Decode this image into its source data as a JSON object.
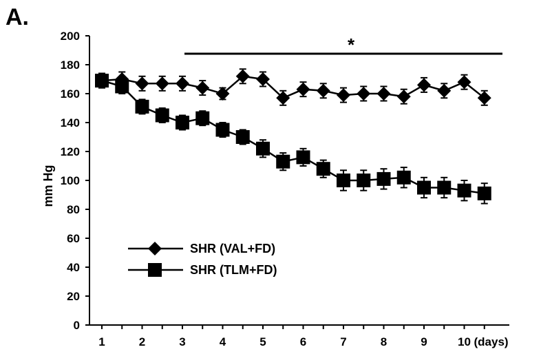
{
  "panel_label": "A.",
  "chart_data": {
    "type": "line",
    "title": "",
    "xlabel": "",
    "ylabel": "mm Hg",
    "x_unit_label": "(days)",
    "ylim": [
      0,
      200
    ],
    "xlim": [
      1,
      11
    ],
    "y_ticks": [
      0,
      20,
      40,
      60,
      80,
      100,
      120,
      140,
      160,
      180,
      200
    ],
    "x_ticks": [
      1,
      2,
      3,
      4,
      5,
      6,
      7,
      8,
      9,
      10
    ],
    "grid": false,
    "legend_position": "lower-left",
    "significance": {
      "label": "*",
      "x_start": 3,
      "x_end": 11
    },
    "series": [
      {
        "name": "SHR (VAL+FD)",
        "marker": "diamond",
        "x": [
          1,
          1.5,
          2,
          2.5,
          3,
          3.5,
          4,
          4.5,
          5,
          5.5,
          6,
          6.5,
          7,
          7.5,
          8,
          8.5,
          9,
          9.5,
          10,
          10.5
        ],
        "values": [
          169,
          170,
          167,
          167,
          167,
          164,
          160,
          172,
          170,
          157,
          163,
          162,
          159,
          160,
          160,
          158,
          166,
          162,
          168,
          157
        ],
        "errors": [
          5,
          5,
          5,
          5,
          5,
          5,
          4,
          5,
          5,
          5,
          5,
          5,
          5,
          5,
          5,
          5,
          5,
          5,
          5,
          5
        ]
      },
      {
        "name": "SHR (TLM+FD)",
        "marker": "square",
        "x": [
          1,
          1.5,
          2,
          2.5,
          3,
          3.5,
          4,
          4.5,
          5,
          5.5,
          6,
          6.5,
          7,
          7.5,
          8,
          8.5,
          9,
          9.5,
          10,
          10.5
        ],
        "values": [
          169,
          165,
          151,
          145,
          140,
          143,
          135,
          130,
          122,
          113,
          116,
          108,
          100,
          100,
          101,
          102,
          95,
          95,
          93,
          91
        ],
        "errors": [
          5,
          5,
          5,
          5,
          5,
          5,
          5,
          5,
          6,
          6,
          6,
          6,
          7,
          7,
          7,
          7,
          7,
          7,
          7,
          7
        ]
      }
    ]
  }
}
